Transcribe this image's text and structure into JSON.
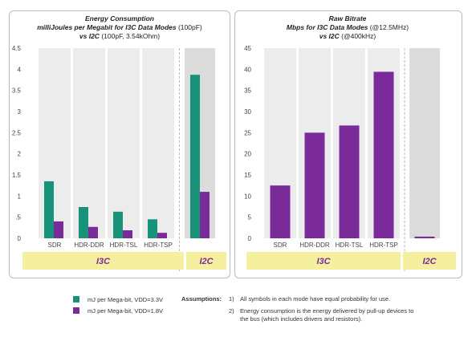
{
  "colors": {
    "teal": "#18937a",
    "purple": "#7b2a99",
    "yellow": "#f4f0a0",
    "plot_bg": "#ececec",
    "i2c_bg": "#dcdcdc"
  },
  "chart_data": [
    {
      "type": "bar",
      "title_line1": "Energy Consumption",
      "title_line2_bold": "milliJoules per Megabit for I3C Data Modes",
      "title_line2_normal": "(100pF)",
      "title_line3_bold": "vs I2C",
      "title_line3_normal": "(100pF, 3.54kOhm)",
      "categories": [
        "SDR",
        "HDR-DDR",
        "HDR-TSL",
        "HDR-TSP",
        ""
      ],
      "series": [
        {
          "name": "mJ per Mega-bit, VDD=3.3V",
          "color": "#18937a",
          "values": [
            1.35,
            0.74,
            0.63,
            0.45,
            3.87
          ]
        },
        {
          "name": "mJ per Mega-bit, VDD=1.8V",
          "color": "#7b2a99",
          "values": [
            0.4,
            0.27,
            0.19,
            0.13,
            1.1
          ]
        }
      ],
      "ylim": [
        0,
        4.5
      ],
      "yticks": [
        "0",
        ".5",
        "1",
        "1.5",
        "2",
        "2.5",
        "3",
        "3.5",
        "4",
        "4.5"
      ],
      "group_labels": {
        "i3c": "I3C",
        "i2c": "I2C"
      },
      "grid": false
    },
    {
      "type": "bar",
      "title_line1": "Raw Bitrate",
      "title_line2_bold": "Mbps for I3C Data Modes",
      "title_line2_normal": "(@12.5MHz)",
      "title_line3_bold": "vs I2C",
      "title_line3_normal": "(@400kHz)",
      "categories": [
        "SDR",
        "HDR-DDR",
        "HDR-TSL",
        "HDR-TSP",
        ""
      ],
      "series": [
        {
          "name": "",
          "color": "#7b2a99",
          "values": [
            12.5,
            25,
            26.7,
            39.4,
            0.4
          ]
        }
      ],
      "ylim": [
        0,
        45
      ],
      "yticks": [
        "0",
        "5",
        "10",
        "15",
        "20",
        "25",
        "30",
        "35",
        "40",
        "45"
      ],
      "group_labels": {
        "i3c": "I3C",
        "i2c": "I2C"
      },
      "grid": false
    }
  ],
  "legend": [
    {
      "label": "mJ per Mega-bit, VDD=3.3V",
      "color": "#18937a"
    },
    {
      "label": "mJ per Mega-bit, VDD=1.8V",
      "color": "#7b2a99"
    }
  ],
  "assumptions": {
    "heading": "Assumptions:",
    "items": [
      {
        "num": "1)",
        "text": "All symbols in each mode have equal probability for use."
      },
      {
        "num": "2)",
        "text": "Energy consumption is the energy delivered by pull-up devices to the bus (which includes drivers and resistors)."
      }
    ]
  }
}
